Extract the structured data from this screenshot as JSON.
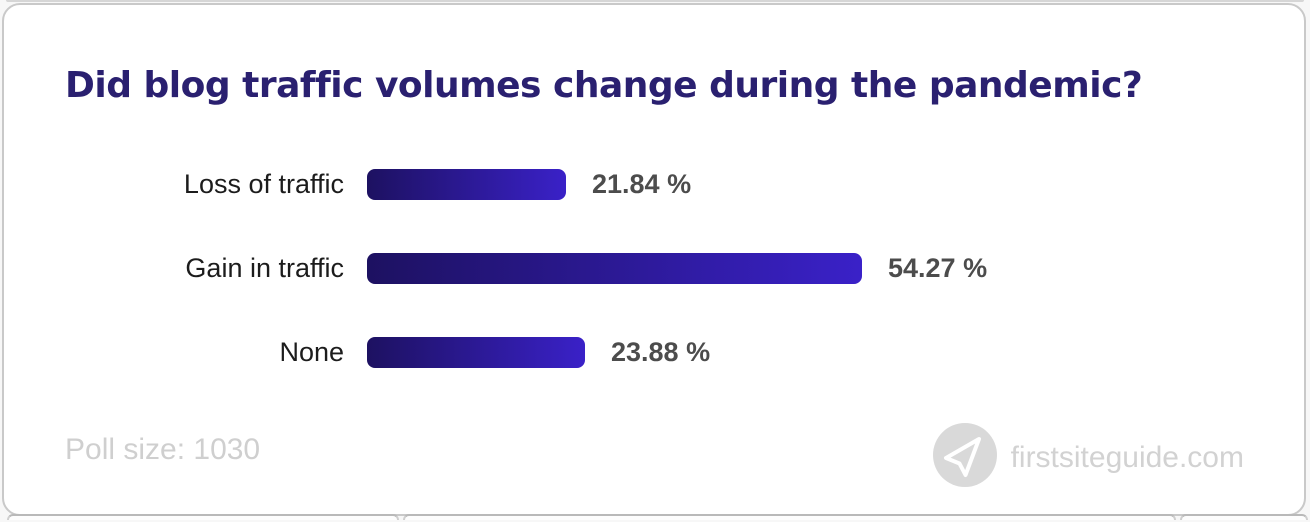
{
  "title": "Did blog traffic volumes change during the pandemic?",
  "chart_data": {
    "type": "bar",
    "orientation": "horizontal",
    "title": "Did blog traffic volumes change during the pandemic?",
    "categories": [
      "Loss of traffic",
      "Gain in traffic",
      "None"
    ],
    "values": [
      21.84,
      54.27,
      23.88
    ],
    "value_labels": [
      "21.84 %",
      "54.27 %",
      "23.88 %"
    ],
    "xlim": [
      0,
      60
    ],
    "grid": false,
    "legend": false,
    "bar_gradient": [
      "#1d1161",
      "#3a21c8"
    ]
  },
  "footer": {
    "poll_size_label": "Poll size: 1030",
    "watermark_text": "firstsiteguide.com",
    "watermark_icon": "paper-plane-icon"
  },
  "colors": {
    "title_text": "#2a2070",
    "bar_gradient_start": "#1d1161",
    "bar_gradient_end": "#3a21c8",
    "category_text": "#1c1c1c",
    "value_text": "#4c4c4c",
    "muted_text": "#cfcfcf",
    "card_border": "#c9c9c9",
    "icon_circle": "#d9d9d9"
  }
}
